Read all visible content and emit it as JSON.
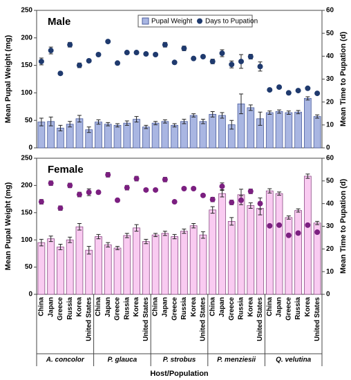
{
  "chart_data": [
    {
      "type": "bar_dot",
      "title": "Male",
      "ylabel": "Mean Pupal Weight (mg)",
      "y2label": "Mean Time to Pupation (d)",
      "ylim": [
        0,
        250
      ],
      "yticks": [
        0,
        50,
        100,
        150,
        200,
        250
      ],
      "y2lim": [
        0,
        60
      ],
      "y2ticks": [
        0,
        10,
        20,
        30,
        40,
        50,
        60
      ],
      "legend": "top",
      "series": [
        {
          "name": "Pupal Weight",
          "kind": "bar",
          "color": "#a9b6e2",
          "edge": "#4a5c9c",
          "values": [
            47,
            48,
            36,
            43,
            53,
            33,
            47,
            43,
            41,
            45,
            52,
            38,
            45,
            48,
            41,
            48,
            59,
            48,
            61,
            59,
            42,
            80,
            73,
            53,
            64,
            66,
            64,
            65,
            90,
            57
          ],
          "errors": [
            7,
            8,
            5,
            5,
            6,
            5,
            4,
            3,
            3,
            4,
            5,
            3,
            3,
            3,
            3,
            4,
            3,
            4,
            5,
            5,
            8,
            18,
            5,
            12,
            3,
            3,
            3,
            3,
            3,
            3
          ]
        },
        {
          "name": "Days to Pupation",
          "kind": "dot",
          "axis": "y2",
          "color": "#1f3a6e",
          "values": [
            37.7,
            42.5,
            32.5,
            45,
            36,
            38,
            40.7,
            46.4,
            37,
            41.6,
            41.6,
            41,
            40.7,
            45,
            37.3,
            43.4,
            39,
            39.8,
            37.7,
            41.3,
            36.4,
            37.7,
            39.8,
            35.5,
            25.3,
            26.5,
            24,
            25,
            26,
            23.8
          ],
          "errors": [
            1.5,
            1.5,
            0.5,
            1,
            1,
            0.5,
            0.5,
            0.5,
            0.5,
            0.5,
            0.5,
            0.5,
            0.5,
            1,
            0.5,
            1,
            0.5,
            0.5,
            1,
            1.5,
            1.5,
            3,
            1,
            2,
            0.5,
            0.5,
            0.5,
            0.5,
            0.5,
            0.5
          ]
        }
      ]
    },
    {
      "type": "bar_dot",
      "title": "Female",
      "ylabel": "Mean Pupal Weight (mg)",
      "y2label": "Mean Time to Pupation (d)",
      "xlabel": "Host/Population",
      "categories": [
        "China",
        "Japan",
        "Greece",
        "Russia",
        "Korea",
        "United States",
        "China",
        "Japan",
        "Greece",
        "Russia",
        "Korea",
        "United States",
        "China",
        "Japan",
        "Greece",
        "Russia",
        "Korea",
        "United States",
        "China",
        "Japan",
        "Greece",
        "Russia",
        "Korea",
        "United States",
        "China",
        "Japan",
        "Greece",
        "Russia",
        "Korea",
        "United States"
      ],
      "groups": [
        "A. concolor",
        "P. glauca",
        "P. strobus",
        "P. menziesii",
        "Q. velutina"
      ],
      "ylim": [
        0,
        250
      ],
      "yticks": [
        0,
        50,
        100,
        150,
        200,
        250
      ],
      "y2lim": [
        0,
        60
      ],
      "y2ticks": [
        0,
        10,
        20,
        30,
        40,
        50,
        60
      ],
      "series": [
        {
          "kind": "bar",
          "color": "#f9cbf1",
          "edge": "#8a4a84",
          "values": [
            95,
            102,
            87,
            100,
            124,
            81,
            106,
            91,
            85,
            108,
            122,
            97,
            109,
            112,
            106,
            116,
            126,
            109,
            155,
            185,
            134,
            183,
            163,
            158,
            190,
            185,
            141,
            154,
            217,
            131
          ],
          "errors": [
            6,
            5,
            5,
            5,
            6,
            7,
            4,
            4,
            3,
            4,
            6,
            4,
            3,
            4,
            4,
            4,
            4,
            6,
            6,
            6,
            7,
            10,
            5,
            12,
            4,
            3,
            3,
            3,
            4,
            3
          ]
        },
        {
          "kind": "dot",
          "axis": "y2",
          "color": "#7b1f80",
          "values": [
            40.8,
            49,
            38,
            48,
            44,
            45,
            45,
            52.7,
            41.5,
            47,
            51,
            46,
            46,
            50.6,
            40.8,
            46.6,
            46.6,
            43.6,
            41.8,
            47.6,
            40.5,
            41.5,
            45.4,
            40,
            30.2,
            30.5,
            26,
            27,
            30.5,
            27.4
          ],
          "errors": [
            1,
            1,
            1,
            1,
            1,
            1.5,
            0.5,
            1,
            0.5,
            1,
            1,
            0.5,
            0.5,
            1,
            0.5,
            0.5,
            0.5,
            0.5,
            1,
            1.5,
            1,
            2,
            1,
            2.5,
            0.5,
            0.5,
            0.5,
            0.5,
            0.5,
            0.5
          ]
        }
      ]
    }
  ]
}
